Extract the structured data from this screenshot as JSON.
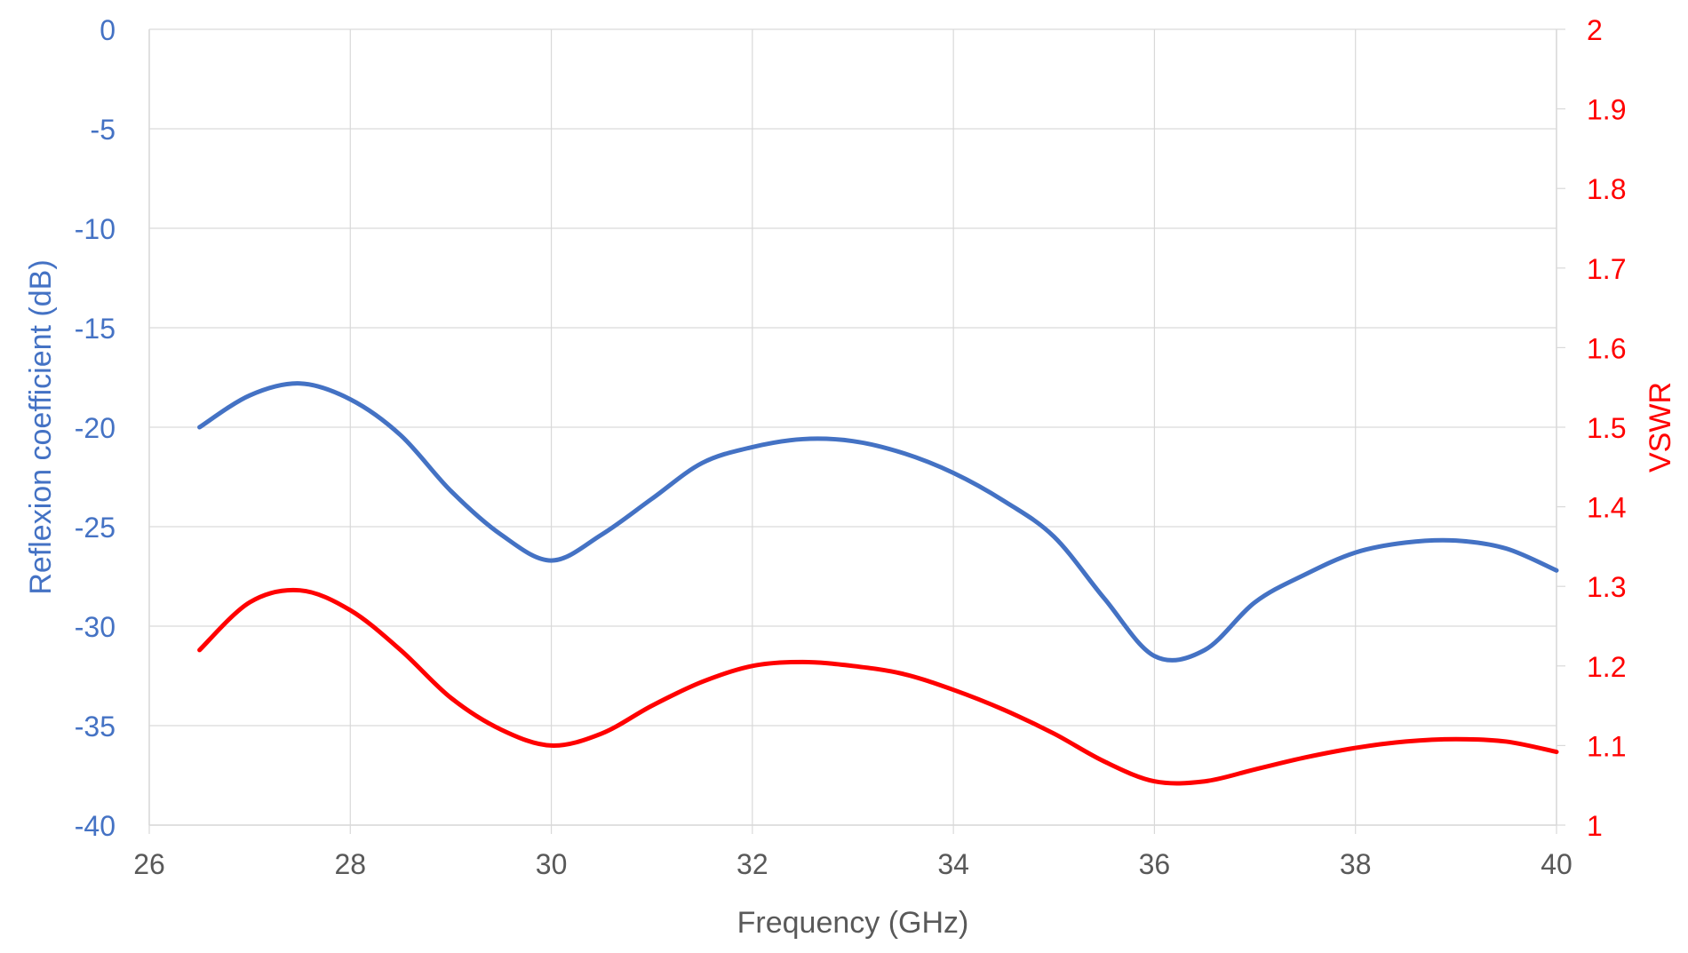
{
  "chart_data": {
    "type": "line",
    "title": "",
    "xlabel": "Frequency (GHz)",
    "ylabel_left": "Reflexion coefficient (dB)",
    "ylabel_right": "VSWR",
    "xlim": [
      26,
      40
    ],
    "ylim_left": [
      -40,
      0
    ],
    "ylim_right": [
      1,
      2
    ],
    "x_ticks": [
      26,
      28,
      30,
      32,
      34,
      36,
      38,
      40
    ],
    "y_ticks_left": [
      0,
      -5,
      -10,
      -15,
      -20,
      -25,
      -30,
      -35,
      -40
    ],
    "y_ticks_right": [
      "2",
      "1.9",
      "1.8",
      "1.7",
      "1.6",
      "1.5",
      "1.4",
      "1.3",
      "1.2",
      "1.1",
      "1"
    ],
    "grid": true,
    "legend": "none",
    "colors": {
      "left_axis": "#4472C4",
      "right_axis": "#FF0000",
      "grid": "#D9D9D9",
      "x_axis_text": "#595959"
    },
    "series": [
      {
        "axis": "left",
        "color": "#4472C4",
        "x": [
          26.5,
          27.0,
          27.5,
          28.0,
          28.5,
          29.0,
          29.5,
          30.0,
          30.5,
          31.0,
          31.5,
          32.0,
          32.5,
          33.0,
          33.5,
          34.0,
          34.5,
          35.0,
          35.5,
          36.0,
          36.5,
          37.0,
          37.5,
          38.0,
          38.5,
          39.0,
          39.5,
          40.0
        ],
        "y": [
          -20.0,
          -18.4,
          -17.8,
          -18.6,
          -20.4,
          -23.2,
          -25.4,
          -26.7,
          -25.4,
          -23.6,
          -21.8,
          -21.0,
          -20.6,
          -20.7,
          -21.3,
          -22.3,
          -23.7,
          -25.5,
          -28.6,
          -31.5,
          -31.2,
          -28.8,
          -27.4,
          -26.3,
          -25.8,
          -25.7,
          -26.1,
          -27.2
        ]
      },
      {
        "axis": "right",
        "color": "#FF0000",
        "x": [
          26.5,
          27.0,
          27.5,
          28.0,
          28.5,
          29.0,
          29.5,
          30.0,
          30.5,
          31.0,
          31.5,
          32.0,
          32.5,
          33.0,
          33.5,
          34.0,
          34.5,
          35.0,
          35.5,
          36.0,
          36.5,
          37.0,
          37.5,
          38.0,
          38.5,
          39.0,
          39.5,
          40.0
        ],
        "y": [
          1.22,
          1.28,
          1.295,
          1.27,
          1.22,
          1.16,
          1.12,
          1.1,
          1.115,
          1.15,
          1.18,
          1.2,
          1.205,
          1.2,
          1.19,
          1.17,
          1.145,
          1.115,
          1.08,
          1.055,
          1.055,
          1.07,
          1.085,
          1.097,
          1.105,
          1.108,
          1.105,
          1.092
        ]
      }
    ]
  }
}
